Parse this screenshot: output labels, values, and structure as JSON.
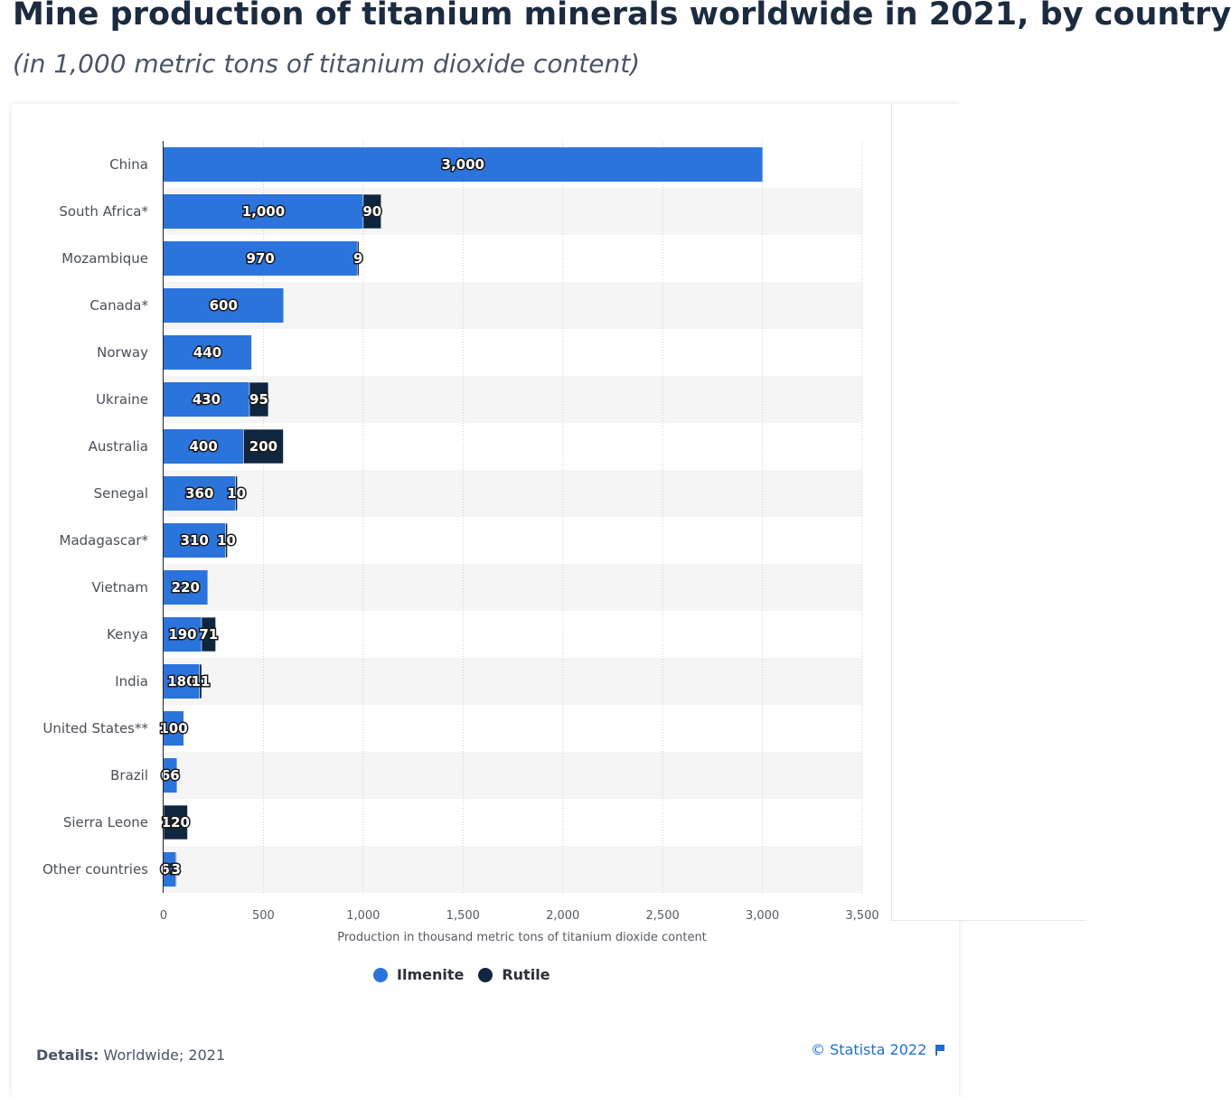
{
  "header": {
    "title": "Mine production of titanium minerals worldwide in 2021, by country",
    "subtitle": "(in 1,000 metric tons of titanium dioxide content)"
  },
  "chart_data": {
    "type": "bar",
    "orientation": "horizontal",
    "stacked": true,
    "categories": [
      "China",
      "South Africa*",
      "Mozambique",
      "Canada*",
      "Norway",
      "Ukraine",
      "Australia",
      "Senegal",
      "Madagascar*",
      "Vietnam",
      "Kenya",
      "India",
      "United States**",
      "Brazil",
      "Sierra Leone",
      "Other countries"
    ],
    "series": [
      {
        "name": "Ilmenite",
        "color": "#2b74db",
        "values": [
          3000,
          1000,
          970,
          600,
          440,
          430,
          400,
          360,
          310,
          220,
          190,
          180,
          100,
          66,
          null,
          61
        ]
      },
      {
        "name": "Rutile",
        "color": "#0f2640",
        "values": [
          null,
          90,
          9,
          null,
          null,
          95,
          200,
          10,
          10,
          null,
          71,
          11,
          null,
          null,
          120,
          3
        ]
      }
    ],
    "xlabel": "Production in thousand metric tons of titanium dioxide content",
    "ylabel": "",
    "xlim": [
      0,
      3500
    ],
    "xticks": [
      0,
      500,
      1000,
      1500,
      2000,
      2500,
      3000,
      3500
    ],
    "xtick_labels": [
      "0",
      "500",
      "1,000",
      "1,500",
      "2,000",
      "2,500",
      "3,000",
      "3,500"
    ],
    "grid": true,
    "legend_position": "bottom-center"
  },
  "legend": {
    "items": [
      {
        "label": "Ilmenite",
        "color": "#2b74db"
      },
      {
        "label": "Rutile",
        "color": "#0f2640"
      }
    ]
  },
  "footer": {
    "details_label": "Details:",
    "details_value": " Worldwide; 2021",
    "credit": "© Statista 2022"
  }
}
